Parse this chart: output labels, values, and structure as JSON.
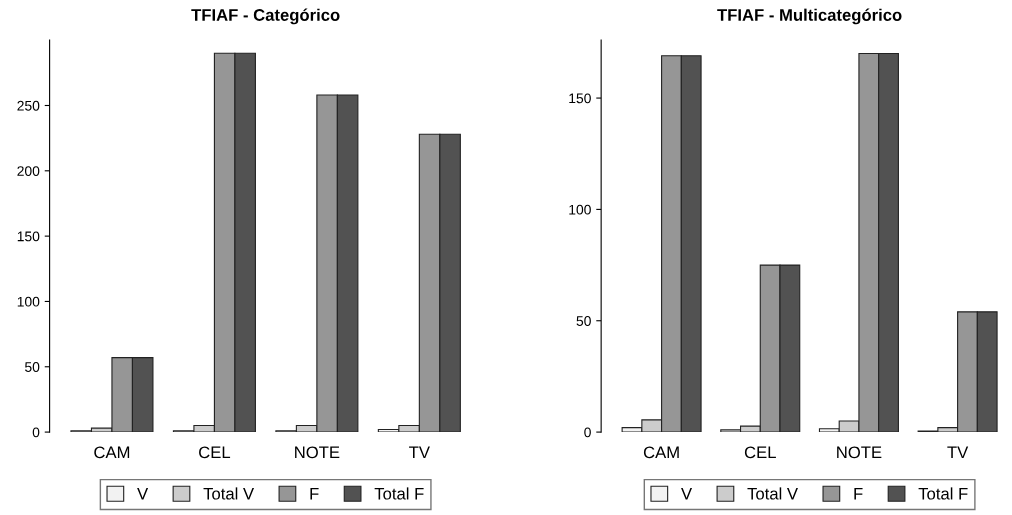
{
  "chart_data": [
    {
      "type": "bar",
      "title": "TFIAF - Categórico",
      "categories": [
        "CAM",
        "CEL",
        "NOTE",
        "TV"
      ],
      "ylim": [
        0,
        300
      ],
      "yticks": [
        0,
        50,
        100,
        150,
        200,
        250
      ],
      "legend": "bottom",
      "grid": false,
      "series": [
        {
          "name": "V",
          "color": "#f2f2f2",
          "values": [
            1,
            1,
            1,
            2
          ]
        },
        {
          "name": "Total V",
          "color": "#cccccc",
          "values": [
            3,
            5,
            5,
            5
          ]
        },
        {
          "name": "F",
          "color": "#969696",
          "values": [
            57,
            290,
            258,
            228
          ]
        },
        {
          "name": "Total F",
          "color": "#525252",
          "values": [
            57,
            290,
            258,
            228
          ]
        }
      ]
    },
    {
      "type": "bar",
      "title": "TFIAF - Multicategórico",
      "categories": [
        "CAM",
        "CEL",
        "NOTE",
        "TV"
      ],
      "ylim": [
        0,
        176
      ],
      "yticks": [
        0,
        50,
        100,
        150
      ],
      "legend": "bottom",
      "grid": false,
      "series": [
        {
          "name": "V",
          "color": "#f2f2f2",
          "values": [
            2,
            1,
            1.5,
            0.5
          ]
        },
        {
          "name": "Total V",
          "color": "#cccccc",
          "values": [
            5.5,
            2.7,
            5,
            2
          ]
        },
        {
          "name": "F",
          "color": "#969696",
          "values": [
            169,
            75,
            170,
            54
          ]
        },
        {
          "name": "Total F",
          "color": "#525252",
          "values": [
            169,
            75,
            170,
            54
          ]
        }
      ]
    }
  ]
}
